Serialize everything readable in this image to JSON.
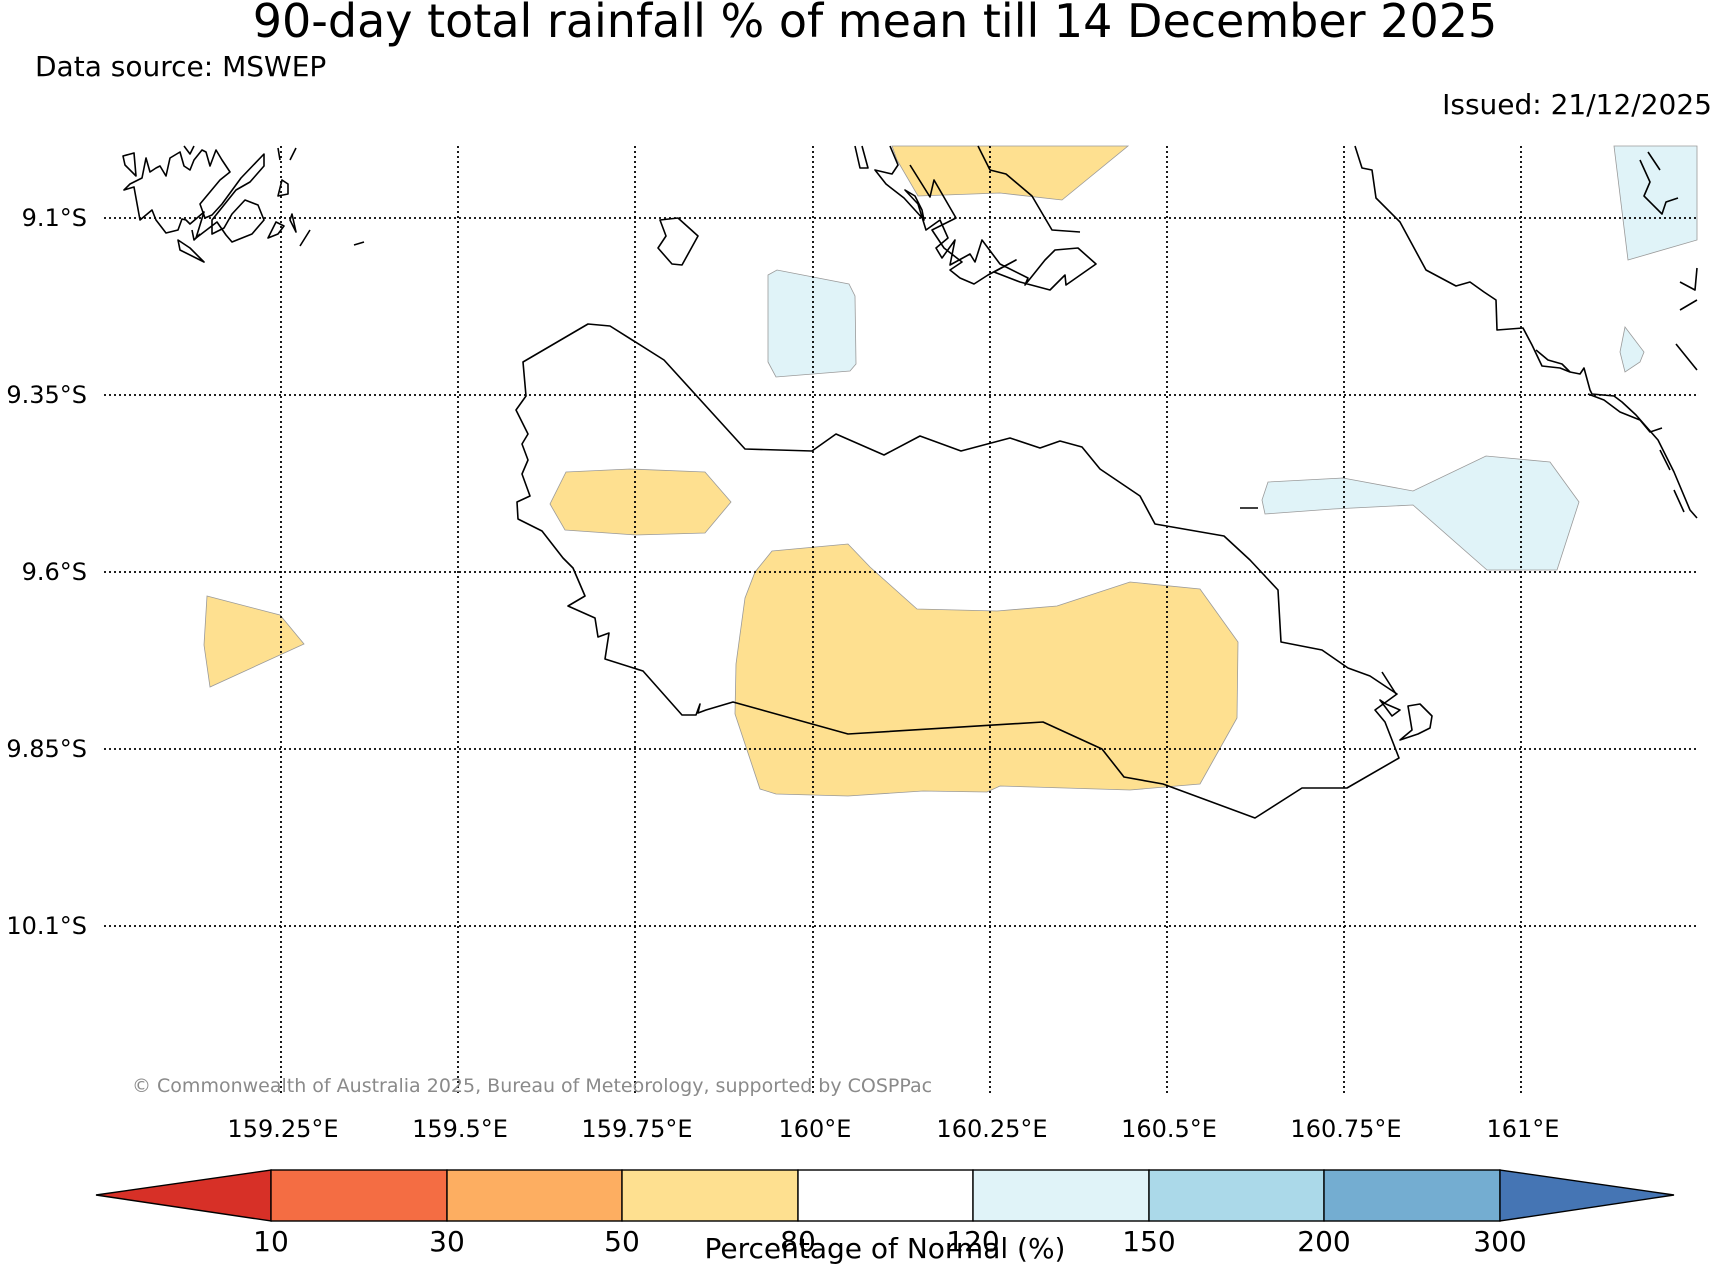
{
  "header": {
    "title": "90-day total rainfall % of mean till 14 December 2025",
    "data_source": "Data source: MSWEP",
    "issued": "Issued: 21/12/2025"
  },
  "map": {
    "latitude_labels": [
      "9.1°S",
      "9.35°S",
      "9.6°S",
      "9.85°S",
      "10.1°S"
    ],
    "longitude_labels": [
      "159.25°E",
      "159.5°E",
      "159.75°E",
      "160°E",
      "160.25°E",
      "160.5°E",
      "160.75°E",
      "161°E"
    ],
    "copyright": "© Commonwealth of Australia 2025, Bureau of Meteorology, supported by COSPPac"
  },
  "colorbar": {
    "title": "Percentage of Normal (%)",
    "ticks": [
      "10",
      "30",
      "50",
      "80",
      "120",
      "150",
      "200",
      "300"
    ],
    "colors": {
      "under_10": "#d73027",
      "10_30": "#f46d43",
      "30_50": "#fdae61",
      "50_80": "#fee090",
      "80_120": "#ffffff",
      "120_150": "#e0f3f8",
      "150_200": "#abd9e9",
      "200_300": "#74add1",
      "over_300": "#4575b4"
    }
  }
}
